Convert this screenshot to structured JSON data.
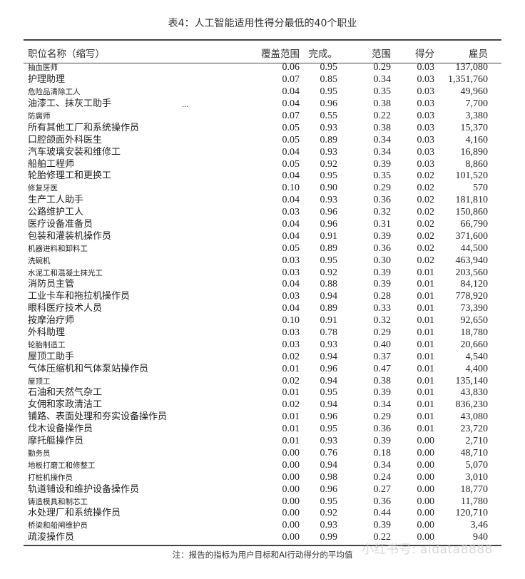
{
  "title": "表4：人工智能适用性得分最低的40个职业",
  "columns": [
    "职位名称（缩写）",
    "覆盖范围",
    "完成。",
    "范围",
    "得分",
    "雇员"
  ],
  "rows": [
    [
      "抽血医师",
      "0.06",
      "0.95",
      "0.29",
      "0.03",
      "137,080"
    ],
    [
      "护理助理",
      "0.07",
      "0.85",
      "0.34",
      "0.03",
      "1,351,760"
    ],
    [
      "危险品清除工人",
      "0.04",
      "0.95",
      "0.35",
      "0.03",
      "49,960"
    ],
    [
      "油漆工、抹灰工助手",
      "0.04",
      "0.96",
      "0.38",
      "0.03",
      "7,700"
    ],
    [
      "防腐师",
      "0.07",
      "0.55",
      "0.22",
      "0.03",
      "3,380"
    ],
    [
      "所有其他工厂和系统操作员",
      "0.05",
      "0.93",
      "0.38",
      "0.03",
      "15,370"
    ],
    [
      "口腔颌面外科医生",
      "0.05",
      "0.89",
      "0.34",
      "0.03",
      "4,160"
    ],
    [
      "汽车玻璃安装和维修工",
      "0.04",
      "0.93",
      "0.34",
      "0.03",
      "16,890"
    ],
    [
      "船舶工程师",
      "0.05",
      "0.92",
      "0.39",
      "0.03",
      "8,860"
    ],
    [
      "轮胎修理工和更换工",
      "0.04",
      "0.95",
      "0.35",
      "0.02",
      "101,520"
    ],
    [
      "修复牙医",
      "0.10",
      "0.90",
      "0.29",
      "0.02",
      "570"
    ],
    [
      "生产工人助手",
      "0.04",
      "0.93",
      "0.36",
      "0.02",
      "181,810"
    ],
    [
      "公路维护工人",
      "0.03",
      "0.96",
      "0.32",
      "0.02",
      "150,860"
    ],
    [
      "医疗设备准备员",
      "0.04",
      "0.96",
      "0.31",
      "0.02",
      "66,790"
    ],
    [
      "包装和灌装机操作员",
      "0.04",
      "0.91",
      "0.39",
      "0.02",
      "371,600"
    ],
    [
      "机器进料和卸料工",
      "0.05",
      "0.89",
      "0.36",
      "0.02",
      "44,500"
    ],
    [
      "洗碗机",
      "0.03",
      "0.95",
      "0.30",
      "0.02",
      "463,940"
    ],
    [
      "水泥工和混凝土抹光工",
      "0.03",
      "0.92",
      "0.39",
      "0.01",
      "203,560"
    ],
    [
      "消防员主管",
      "0.04",
      "0.88",
      "0.39",
      "0.01",
      "84,120"
    ],
    [
      "工业卡车和拖拉机操作员",
      "0.03",
      "0.94",
      "0.28",
      "0.01",
      "778,920"
    ],
    [
      "眼科医疗技术人员",
      "0.04",
      "0.89",
      "0.33",
      "0.01",
      "73,390"
    ],
    [
      "按摩治疗师",
      "0.10",
      "0.91",
      "0.32",
      "0.01",
      "92,650"
    ],
    [
      "外科助理",
      "0.03",
      "0.78",
      "0.29",
      "0.01",
      "18,780"
    ],
    [
      "轮胎制造工",
      "0.03",
      "0.93",
      "0.40",
      "0.01",
      "20,660"
    ],
    [
      "屋顶工助手",
      "0.02",
      "0.94",
      "0.37",
      "0.01",
      "4,540"
    ],
    [
      "气体压缩机和气体泵站操作员",
      "0.01",
      "0.96",
      "0.47",
      "0.01",
      "4,400"
    ],
    [
      "屋顶工",
      "0.02",
      "0.94",
      "0.38",
      "0.01",
      "135,140"
    ],
    [
      "石油和天然气杂工",
      "0.01",
      "0.95",
      "0.39",
      "0.01",
      "43,830"
    ],
    [
      "女佣和家政清洁工",
      "0.02",
      "0.94",
      "0.34",
      "0.01",
      "836,230"
    ],
    [
      "铺路、表面处理和夯实设备操作员",
      "0.01",
      "0.96",
      "0.29",
      "0.01",
      "43,080"
    ],
    [
      "伐木设备操作员",
      "0.01",
      "0.95",
      "0.36",
      "0.01",
      "23,720"
    ],
    [
      "摩托艇操作员",
      "0.01",
      "0.93",
      "0.39",
      "0.00",
      "2,710"
    ],
    [
      "勤务员",
      "0.00",
      "0.76",
      "0.18",
      "0.00",
      "48,710"
    ],
    [
      "地板打磨工和修整工",
      "0.00",
      "0.94",
      "0.34",
      "0.00",
      "5,070"
    ],
    [
      "打桩机操作员",
      "0.00",
      "0.98",
      "0.24",
      "0.00",
      "3,010"
    ],
    [
      "轨道铺设和维护设备操作员",
      "0.00",
      "0.96",
      "0.27",
      "0.00",
      "18,770"
    ],
    [
      "铸造模具和制芯工",
      "0.00",
      "0.95",
      "0.36",
      "0.00",
      "11,780"
    ],
    [
      "水处理厂和系统操作员",
      "0.00",
      "0.92",
      "0.44",
      "0.00",
      "120,710"
    ],
    [
      "桥梁和船闸维护员",
      "0.00",
      "0.93",
      "0.39",
      "0.00",
      "3,46"
    ],
    [
      "疏浚操作员",
      "0.00",
      "0.99",
      "0.22",
      "0.00",
      "940"
    ]
  ],
  "ellipsis": "...",
  "note": "注：报告的指标为用户目标和AI行动得分的平均值",
  "watermark": "小红书号: aidata8888"
}
